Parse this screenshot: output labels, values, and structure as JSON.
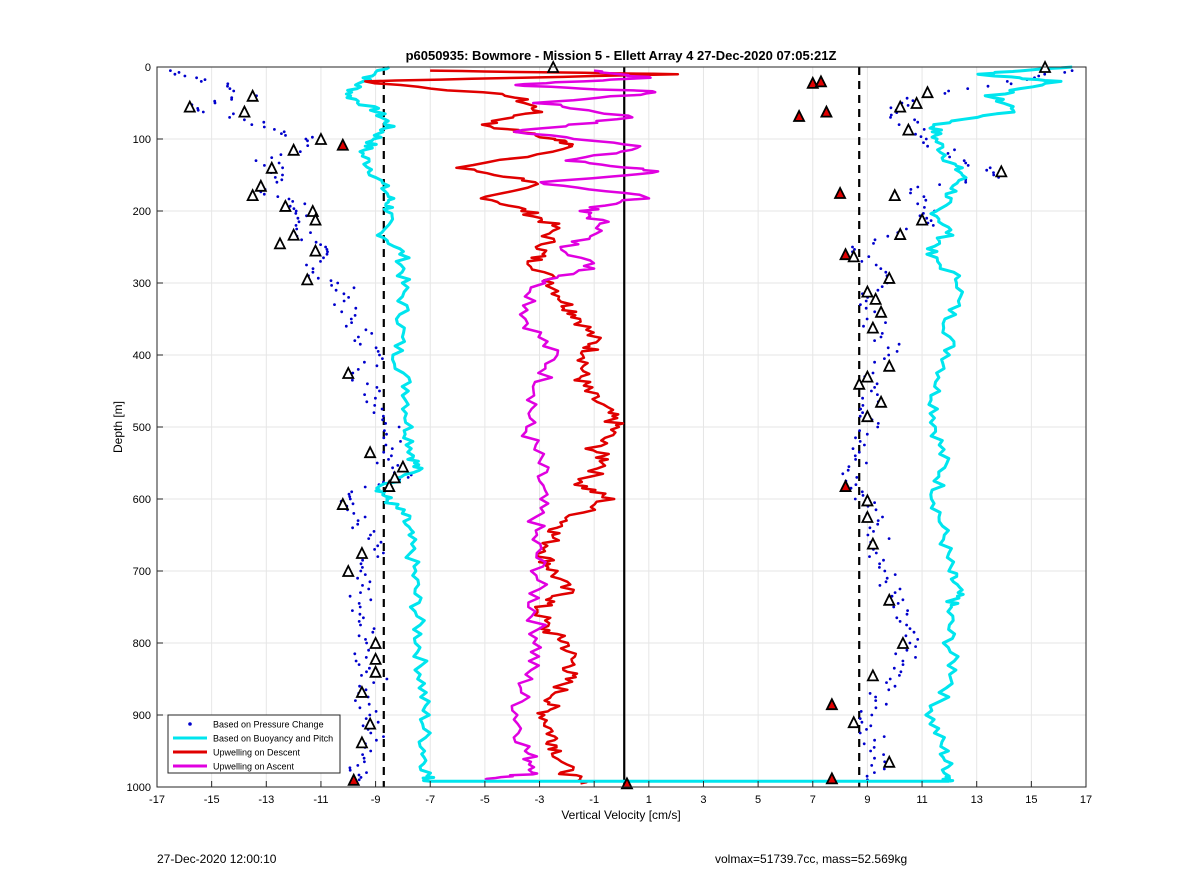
{
  "chart_data": {
    "type": "scatter",
    "title": "p6050935: Bowmore - Mission 5 - Ellett Array 4 27-Dec-2020 07:05:21Z",
    "xlabel": "Vertical Velocity [cm/s]",
    "ylabel": "Depth [m]",
    "xlim": [
      -17,
      17
    ],
    "ylim": [
      0,
      1000
    ],
    "y_reversed": true,
    "grid": true,
    "xticks": [
      "-17",
      "-15",
      "-13",
      "-11",
      "-9",
      "-7",
      "-5",
      "-3",
      "-1",
      "1",
      "3",
      "5",
      "7",
      "9",
      "11",
      "13",
      "15",
      "17"
    ],
    "yticks": [
      "0",
      "100",
      "200",
      "300",
      "400",
      "500",
      "600",
      "700",
      "800",
      "900",
      "1000"
    ],
    "legend_position": "bottom-left",
    "legend": [
      {
        "label": "Based on Pressure Change",
        "color": "#0000cc",
        "style": "dot"
      },
      {
        "label": "Based on Buoyancy and Pitch",
        "color": "#00e5ee",
        "style": "line"
      },
      {
        "label": "Upwelling on Descent",
        "color": "#e00000",
        "style": "line"
      },
      {
        "label": "Upwelling on Ascent",
        "color": "#e000e0",
        "style": "line"
      }
    ],
    "reference_lines": [
      {
        "x": -8.7,
        "style": "dashed",
        "color": "#000000"
      },
      {
        "x": 8.7,
        "style": "dashed",
        "color": "#000000"
      },
      {
        "x": 0.1,
        "style": "solid",
        "color": "#000000"
      }
    ],
    "series": [
      {
        "key": "buoyancy_descent",
        "color": "#00e5ee",
        "y": [
          0,
          20,
          40,
          60,
          80,
          100,
          120,
          150,
          180,
          200,
          230,
          260,
          300,
          350,
          400,
          450,
          500,
          540,
          560,
          585,
          600,
          620,
          650,
          700,
          750,
          800,
          850,
          900,
          950,
          985,
          992
        ],
        "x": [
          -8.5,
          -9.5,
          -10.0,
          -9.0,
          -8.5,
          -9.0,
          -9.5,
          -9.0,
          -8.5,
          -8.5,
          -8.8,
          -8.0,
          -8.0,
          -8.0,
          -8.2,
          -7.8,
          -7.8,
          -7.6,
          -7.5,
          -8.8,
          -8.6,
          -8.0,
          -7.8,
          -7.6,
          -7.5,
          -7.4,
          -7.3,
          -7.2,
          -7.2,
          -7.1,
          -7.0
        ]
      },
      {
        "key": "buoyancy_ascent",
        "color": "#00e5ee",
        "y": [
          0,
          10,
          20,
          40,
          60,
          80,
          100,
          130,
          150,
          180,
          200,
          230,
          260,
          300,
          350,
          400,
          450,
          500,
          550,
          600,
          650,
          700,
          730,
          750,
          800,
          850,
          900,
          950,
          985,
          992
        ],
        "x": [
          16.5,
          13.0,
          16.0,
          13.5,
          14.5,
          11.5,
          11.5,
          12.0,
          12.5,
          12.0,
          11.5,
          12.0,
          11.2,
          12.5,
          12.0,
          12.0,
          11.5,
          11.5,
          11.8,
          11.5,
          11.8,
          12.0,
          12.3,
          12.0,
          12.0,
          12.2,
          11.3,
          11.8,
          12.0,
          12.0
        ]
      },
      {
        "key": "upwelling_descent",
        "color": "#e00000",
        "y": [
          5,
          10,
          20,
          40,
          60,
          80,
          100,
          110,
          140,
          160,
          180,
          200,
          220,
          250,
          270,
          300,
          330,
          350,
          380,
          400,
          430,
          450,
          480,
          500,
          530,
          550,
          580,
          600,
          630,
          650,
          680,
          700,
          730,
          750,
          780,
          800,
          830,
          850,
          880,
          900,
          930,
          950,
          980,
          995
        ],
        "x": [
          -7.0,
          2.0,
          -9.5,
          -4.0,
          -3.0,
          -5.0,
          -2.5,
          -1.5,
          -6.0,
          -3.0,
          -5.0,
          -3.5,
          -2.5,
          -2.8,
          -3.2,
          -2.5,
          -2.0,
          -1.5,
          -1.0,
          -1.2,
          -1.5,
          -1.3,
          -0.5,
          -0.2,
          -1.0,
          -0.5,
          -1.5,
          -0.5,
          -2.0,
          -2.5,
          -2.8,
          -2.5,
          -2.0,
          -3.0,
          -2.8,
          -2.0,
          -1.8,
          -2.0,
          -2.5,
          -2.8,
          -2.5,
          -2.3,
          -2.0,
          -1.5
        ]
      },
      {
        "key": "upwelling_ascent",
        "color": "#e000e0",
        "y": [
          5,
          15,
          25,
          35,
          50,
          70,
          90,
          110,
          130,
          145,
          160,
          180,
          200,
          220,
          250,
          280,
          300,
          350,
          400,
          450,
          500,
          550,
          600,
          650,
          700,
          750,
          800,
          850,
          900,
          950,
          980,
          990
        ],
        "x": [
          -1.0,
          1.0,
          -4.0,
          1.5,
          -3.0,
          0.5,
          -4.0,
          1.0,
          -2.0,
          1.5,
          -3.0,
          1.0,
          -1.5,
          -0.5,
          -2.0,
          -1.0,
          -3.0,
          -3.5,
          -2.5,
          -3.0,
          -3.5,
          -3.0,
          -3.0,
          -3.2,
          -3.0,
          -3.2,
          -3.0,
          -3.5,
          -3.8,
          -3.5,
          -3.0,
          -5.0
        ]
      },
      {
        "key": "pressure_descent",
        "color": "#0000cc",
        "y": [
          5,
          20,
          40,
          55,
          70,
          90,
          105,
          130,
          150,
          170,
          190,
          210,
          240,
          260,
          290,
          310,
          340,
          370,
          400,
          430,
          460,
          490,
          520,
          550,
          570,
          590,
          610,
          640,
          670,
          700,
          730,
          760,
          790,
          820,
          850,
          880,
          910,
          940,
          970,
          990
        ],
        "x": [
          -16.5,
          -15.0,
          -13.5,
          -15.8,
          -14.0,
          -12.5,
          -11.0,
          -13.0,
          -12.5,
          -13.0,
          -12.0,
          -11.8,
          -11.5,
          -11.0,
          -11.2,
          -10.0,
          -10.2,
          -9.5,
          -9.0,
          -9.5,
          -9.0,
          -8.5,
          -8.2,
          -8.5,
          -8.0,
          -9.5,
          -10.0,
          -9.5,
          -9.0,
          -9.8,
          -9.5,
          -9.8,
          -9.2,
          -9.5,
          -9.0,
          -9.5,
          -9.2,
          -9.0,
          -9.5,
          -9.6
        ]
      },
      {
        "key": "pressure_ascent",
        "color": "#0000cc",
        "y": [
          5,
          20,
          40,
          60,
          80,
          100,
          130,
          150,
          170,
          200,
          220,
          250,
          270,
          300,
          330,
          360,
          390,
          420,
          450,
          480,
          510,
          540,
          570,
          600,
          630,
          660,
          690,
          720,
          750,
          780,
          810,
          840,
          870,
          900,
          930,
          960,
          990
        ],
        "x": [
          16.5,
          14.5,
          11.0,
          10.0,
          10.5,
          11.0,
          12.5,
          14.0,
          10.5,
          11.5,
          11.0,
          8.5,
          9.0,
          9.5,
          9.0,
          9.3,
          9.8,
          9.5,
          9.0,
          9.2,
          9.0,
          8.8,
          8.5,
          9.0,
          9.2,
          9.5,
          9.5,
          9.8,
          10.0,
          10.3,
          10.5,
          10.0,
          9.5,
          9.0,
          9.2,
          9.5,
          9.0
        ]
      }
    ],
    "triangle_markers": [
      {
        "x": -2.5,
        "y": 0,
        "fill": "#ffffff"
      },
      {
        "x": -15.8,
        "y": 55,
        "fill": "#ffffff"
      },
      {
        "x": -13.5,
        "y": 40,
        "fill": "#ffffff"
      },
      {
        "x": -13.8,
        "y": 62,
        "fill": "#ffffff"
      },
      {
        "x": -11.0,
        "y": 100,
        "fill": "#ffffff"
      },
      {
        "x": -10.2,
        "y": 108,
        "fill": "#e00000"
      },
      {
        "x": -12.0,
        "y": 115,
        "fill": "#ffffff"
      },
      {
        "x": -12.8,
        "y": 140,
        "fill": "#ffffff"
      },
      {
        "x": -13.2,
        "y": 165,
        "fill": "#ffffff"
      },
      {
        "x": -13.5,
        "y": 178,
        "fill": "#ffffff"
      },
      {
        "x": -12.3,
        "y": 193,
        "fill": "#ffffff"
      },
      {
        "x": -11.3,
        "y": 200,
        "fill": "#ffffff"
      },
      {
        "x": -11.2,
        "y": 212,
        "fill": "#ffffff"
      },
      {
        "x": -12.0,
        "y": 233,
        "fill": "#ffffff"
      },
      {
        "x": -12.5,
        "y": 245,
        "fill": "#ffffff"
      },
      {
        "x": -11.2,
        "y": 255,
        "fill": "#ffffff"
      },
      {
        "x": -11.5,
        "y": 295,
        "fill": "#ffffff"
      },
      {
        "x": -10.0,
        "y": 425,
        "fill": "#ffffff"
      },
      {
        "x": -9.2,
        "y": 535,
        "fill": "#ffffff"
      },
      {
        "x": -8.0,
        "y": 555,
        "fill": "#ffffff"
      },
      {
        "x": -8.3,
        "y": 570,
        "fill": "#ffffff"
      },
      {
        "x": -8.5,
        "y": 582,
        "fill": "#ffffff"
      },
      {
        "x": -10.2,
        "y": 607,
        "fill": "#ffffff"
      },
      {
        "x": -9.5,
        "y": 675,
        "fill": "#ffffff"
      },
      {
        "x": -10.0,
        "y": 700,
        "fill": "#ffffff"
      },
      {
        "x": -9.0,
        "y": 800,
        "fill": "#ffffff"
      },
      {
        "x": -9.0,
        "y": 822,
        "fill": "#ffffff"
      },
      {
        "x": -9.0,
        "y": 840,
        "fill": "#ffffff"
      },
      {
        "x": -9.5,
        "y": 868,
        "fill": "#ffffff"
      },
      {
        "x": -9.2,
        "y": 912,
        "fill": "#ffffff"
      },
      {
        "x": -9.5,
        "y": 938,
        "fill": "#ffffff"
      },
      {
        "x": -9.8,
        "y": 990,
        "fill": "#e00000"
      },
      {
        "x": 0.2,
        "y": 995,
        "fill": "#e00000"
      },
      {
        "x": 7.0,
        "y": 22,
        "fill": "#e00000"
      },
      {
        "x": 7.3,
        "y": 20,
        "fill": "#e00000"
      },
      {
        "x": 7.5,
        "y": 62,
        "fill": "#e00000"
      },
      {
        "x": 6.5,
        "y": 68,
        "fill": "#e00000"
      },
      {
        "x": 8.0,
        "y": 175,
        "fill": "#e00000"
      },
      {
        "x": 15.5,
        "y": 0,
        "fill": "#ffffff"
      },
      {
        "x": 11.2,
        "y": 35,
        "fill": "#ffffff"
      },
      {
        "x": 10.8,
        "y": 50,
        "fill": "#ffffff"
      },
      {
        "x": 10.2,
        "y": 55,
        "fill": "#ffffff"
      },
      {
        "x": 10.5,
        "y": 87,
        "fill": "#ffffff"
      },
      {
        "x": 13.9,
        "y": 145,
        "fill": "#ffffff"
      },
      {
        "x": 10.0,
        "y": 178,
        "fill": "#ffffff"
      },
      {
        "x": 11.0,
        "y": 212,
        "fill": "#ffffff"
      },
      {
        "x": 10.2,
        "y": 232,
        "fill": "#ffffff"
      },
      {
        "x": 8.2,
        "y": 260,
        "fill": "#e00000"
      },
      {
        "x": 8.5,
        "y": 263,
        "fill": "#ffffff"
      },
      {
        "x": 9.8,
        "y": 293,
        "fill": "#ffffff"
      },
      {
        "x": 9.0,
        "y": 312,
        "fill": "#ffffff"
      },
      {
        "x": 9.3,
        "y": 322,
        "fill": "#ffffff"
      },
      {
        "x": 9.5,
        "y": 340,
        "fill": "#ffffff"
      },
      {
        "x": 9.2,
        "y": 362,
        "fill": "#ffffff"
      },
      {
        "x": 9.8,
        "y": 415,
        "fill": "#ffffff"
      },
      {
        "x": 9.0,
        "y": 430,
        "fill": "#ffffff"
      },
      {
        "x": 8.7,
        "y": 440,
        "fill": "#ffffff"
      },
      {
        "x": 9.5,
        "y": 465,
        "fill": "#ffffff"
      },
      {
        "x": 9.0,
        "y": 485,
        "fill": "#ffffff"
      },
      {
        "x": 8.2,
        "y": 582,
        "fill": "#e00000"
      },
      {
        "x": 9.0,
        "y": 602,
        "fill": "#ffffff"
      },
      {
        "x": 9.0,
        "y": 625,
        "fill": "#ffffff"
      },
      {
        "x": 9.2,
        "y": 662,
        "fill": "#ffffff"
      },
      {
        "x": 9.8,
        "y": 740,
        "fill": "#ffffff"
      },
      {
        "x": 10.3,
        "y": 800,
        "fill": "#ffffff"
      },
      {
        "x": 9.2,
        "y": 845,
        "fill": "#ffffff"
      },
      {
        "x": 7.7,
        "y": 885,
        "fill": "#e00000"
      },
      {
        "x": 8.5,
        "y": 910,
        "fill": "#ffffff"
      },
      {
        "x": 9.8,
        "y": 965,
        "fill": "#ffffff"
      },
      {
        "x": 7.7,
        "y": 988,
        "fill": "#e00000"
      }
    ]
  },
  "footer": {
    "timestamp": "27-Dec-2020 12:00:10",
    "info": "volmax=51739.7cc, mass=52.569kg"
  }
}
